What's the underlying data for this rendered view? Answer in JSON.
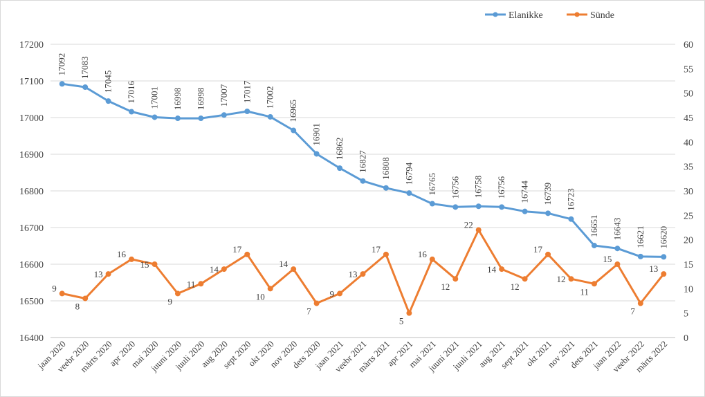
{
  "chart_data": {
    "type": "line",
    "categories": [
      "jaan 2020",
      "veebr 2020",
      "märts 2020",
      "apr 2020",
      "mai 2020",
      "juuni 2020",
      "juuli 2020",
      "aug 2020",
      "sept 2020",
      "okt 2020",
      "nov 2020",
      "dets 2020",
      "jaan 2021",
      "veebr 2021",
      "märts 2021",
      "apr 2021",
      "mai 2021",
      "juuni 2021",
      "juuli 2021",
      "aug 2021",
      "sept 2021",
      "okt 2021",
      "nov 2021",
      "dets 2021",
      "jaan 2022",
      "veebr 2022",
      "märts 2022"
    ],
    "series": [
      {
        "name": "Elanikke",
        "axis": "left",
        "color": "#5b9bd5",
        "values": [
          17092,
          17083,
          17045,
          17016,
          17001,
          16998,
          16998,
          17007,
          17017,
          17002,
          16965,
          16901,
          16862,
          16827,
          16808,
          16794,
          16765,
          16756,
          16758,
          16756,
          16744,
          16739,
          16723,
          16651,
          16643,
          16621,
          16620
        ]
      },
      {
        "name": "Sünde",
        "axis": "right",
        "color": "#ed7d31",
        "values": [
          9,
          8,
          13,
          16,
          15,
          9,
          11,
          14,
          17,
          10,
          14,
          7,
          9,
          13,
          17,
          5,
          16,
          12,
          22,
          14,
          12,
          17,
          12,
          11,
          15,
          7,
          13
        ]
      }
    ],
    "y_left": {
      "min": 16400,
      "max": 17200,
      "ticks": [
        16400,
        16500,
        16600,
        16700,
        16800,
        16900,
        17000,
        17100,
        17200
      ]
    },
    "y_right": {
      "min": 0,
      "max": 60,
      "ticks": [
        0,
        5,
        10,
        15,
        20,
        25,
        30,
        35,
        40,
        45,
        50,
        55,
        60
      ]
    },
    "grid": true,
    "legend_position": "top-right"
  }
}
